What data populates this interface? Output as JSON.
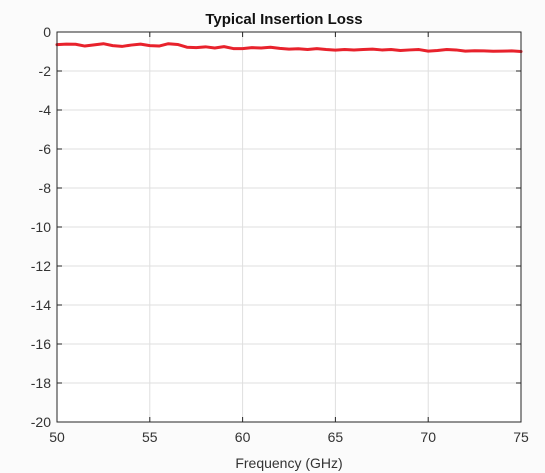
{
  "chart_data": {
    "type": "line",
    "title": "Typical Insertion Loss",
    "xlabel": "Frequency (GHz)",
    "ylabel": "",
    "xlim": [
      50,
      75
    ],
    "ylim": [
      -20,
      0
    ],
    "xticks": [
      50,
      55,
      60,
      65,
      70,
      75
    ],
    "yticks": [
      0,
      -2,
      -4,
      -6,
      -8,
      -10,
      -12,
      -14,
      -16,
      -18,
      -20
    ],
    "grid": true,
    "series": [
      {
        "color": "#e8222c",
        "x": [
          50,
          50.5,
          51,
          51.5,
          52,
          52.5,
          53,
          53.5,
          54,
          54.5,
          55,
          55.5,
          56,
          56.5,
          57,
          57.5,
          58,
          58.5,
          59,
          59.5,
          60,
          60.5,
          61,
          61.5,
          62,
          62.5,
          63,
          63.5,
          64,
          64.5,
          65,
          65.5,
          66,
          66.5,
          67,
          67.5,
          68,
          68.5,
          69,
          69.5,
          70,
          70.5,
          71,
          71.5,
          72,
          72.5,
          73,
          73.5,
          74,
          74.5,
          75
        ],
        "y": [
          -0.65,
          -0.62,
          -0.63,
          -0.72,
          -0.66,
          -0.6,
          -0.7,
          -0.74,
          -0.67,
          -0.62,
          -0.7,
          -0.72,
          -0.6,
          -0.64,
          -0.78,
          -0.8,
          -0.76,
          -0.82,
          -0.75,
          -0.85,
          -0.85,
          -0.8,
          -0.82,
          -0.78,
          -0.84,
          -0.88,
          -0.86,
          -0.9,
          -0.85,
          -0.9,
          -0.93,
          -0.9,
          -0.92,
          -0.9,
          -0.88,
          -0.92,
          -0.9,
          -0.95,
          -0.92,
          -0.9,
          -0.98,
          -0.95,
          -0.9,
          -0.92,
          -0.98,
          -0.96,
          -0.97,
          -0.99,
          -0.98,
          -0.97,
          -1.0
        ]
      }
    ]
  }
}
